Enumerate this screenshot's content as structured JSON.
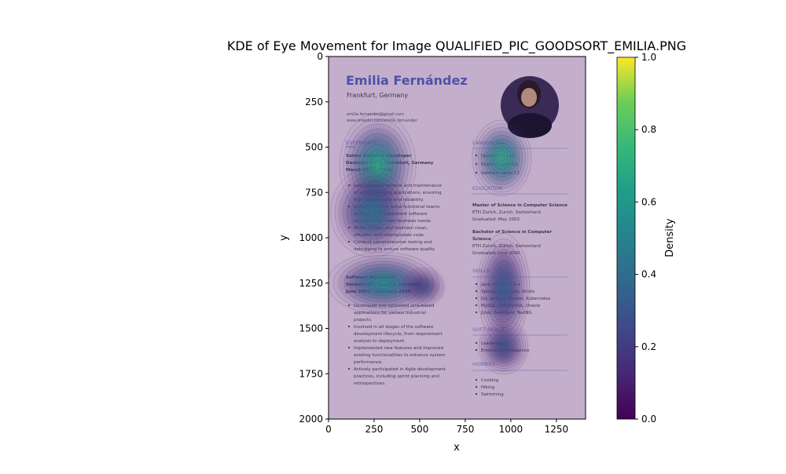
{
  "chart_data": {
    "type": "heatmap",
    "title": "KDE of Eye Movement for Image QUALIFIED_PIC_GOODSORT_EMILIA.PNG",
    "xlabel": "x",
    "ylabel": "y",
    "xlim": [
      0,
      1410
    ],
    "ylim": [
      2000,
      0
    ],
    "x_ticks": [
      "0",
      "250",
      "500",
      "750",
      "1000",
      "1250"
    ],
    "x_tick_values": [
      0,
      250,
      500,
      750,
      1000,
      1250
    ],
    "y_ticks": [
      "0",
      "250",
      "500",
      "750",
      "1000",
      "1250",
      "1500",
      "1750",
      "2000"
    ],
    "y_tick_values": [
      0,
      250,
      500,
      750,
      1000,
      1250,
      1500,
      1750,
      2000
    ],
    "colorbar": {
      "label": "Density",
      "ticks": [
        "0.0",
        "0.2",
        "0.4",
        "0.6",
        "0.8",
        "1.0"
      ],
      "tick_values": [
        0.0,
        0.2,
        0.4,
        0.6,
        0.8,
        1.0
      ],
      "colormap": "viridis"
    },
    "grid": false,
    "density_peaks": [
      {
        "x": 270,
        "y": 600,
        "sx": 110,
        "sy": 150,
        "density": 0.85
      },
      {
        "x": 240,
        "y": 860,
        "sx": 120,
        "sy": 130,
        "density": 0.55
      },
      {
        "x": 950,
        "y": 560,
        "sx": 85,
        "sy": 110,
        "density": 0.9
      },
      {
        "x": 300,
        "y": 1250,
        "sx": 160,
        "sy": 90,
        "density": 0.7
      },
      {
        "x": 960,
        "y": 1280,
        "sx": 75,
        "sy": 160,
        "density": 0.45
      },
      {
        "x": 960,
        "y": 1600,
        "sx": 70,
        "sy": 80,
        "density": 0.4
      },
      {
        "x": 520,
        "y": 1270,
        "sx": 60,
        "sy": 55,
        "density": 0.4
      }
    ]
  },
  "resume": {
    "name": "Emilia Fernández",
    "location": "Frankfurt, Germany",
    "email": "emilia.fernandez@gmail.com",
    "linkedin": "www.linkedin.com/emilia_fernandez",
    "headings": {
      "experience": "EXPERIENCE",
      "languages": "LANGUAGES",
      "education": "EDUCATION",
      "skills": "SKILLS",
      "soft_skills": "SOFT SKILLS",
      "hobbies": "HOBBIES"
    },
    "job1": {
      "title": "Senior Software Developer",
      "company": "Deutsche Bank, Frankfurt, Germany",
      "dates": "March 2010 – 2024",
      "bullets": [
        "Lead the development and maintenance",
        "of critical banking applications, ensuring",
        "high performance and reliability.",
        "Collaborate with cross-functional teams",
        "to define and implement software",
        "solutions that meet business needs.",
        "Write, review, and maintain clean,",
        "efficient, and maintainable code.",
        "Conduct comprehensive testing and",
        "debugging to ensure software quality."
      ]
    },
    "job2": {
      "title": "Software Developer",
      "company": "Siemens AG, Munich, Germany",
      "dates": "June 2003 – February 2010",
      "bullets": [
        "Developed and optimized Java-based",
        "applications for various industrial",
        "projects.",
        "Involved in all stages of the software",
        "development lifecycle, from requirement",
        "analysis to deployment.",
        "Implemented new features and improved",
        "existing functionalities to enhance system",
        "performance.",
        "Actively participated in Agile development",
        "practices, including sprint planning and",
        "retrospectives."
      ]
    },
    "languages": [
      "Spanish: Fluent",
      "English: Level C1",
      "German: Level C1"
    ],
    "education": [
      {
        "lines": [
          "Master of Science in Computer Science"
        ],
        "school": "ETH Zurich, Zurich, Switzerland",
        "date": "Graduated: May 2003"
      },
      {
        "lines": [
          "Bachelor of Science in Computer",
          "Science"
        ],
        "school": "ETH Zurich, Zurich, Switzerland",
        "date": "Graduated: June 2000"
      }
    ],
    "skills": [
      "Java, Python, C++",
      "Spring, Hibernate, Struts",
      "Git, Jenkins, Docker, Kubernetes",
      "MySQL, PostgreSQL, Oracle",
      "JUnit, Selenium, TestNG"
    ],
    "soft_skills": [
      "Leadership",
      "Emotional Intelligence"
    ],
    "hobbies": [
      "Cooking",
      "Hiking",
      "Swimming"
    ]
  }
}
